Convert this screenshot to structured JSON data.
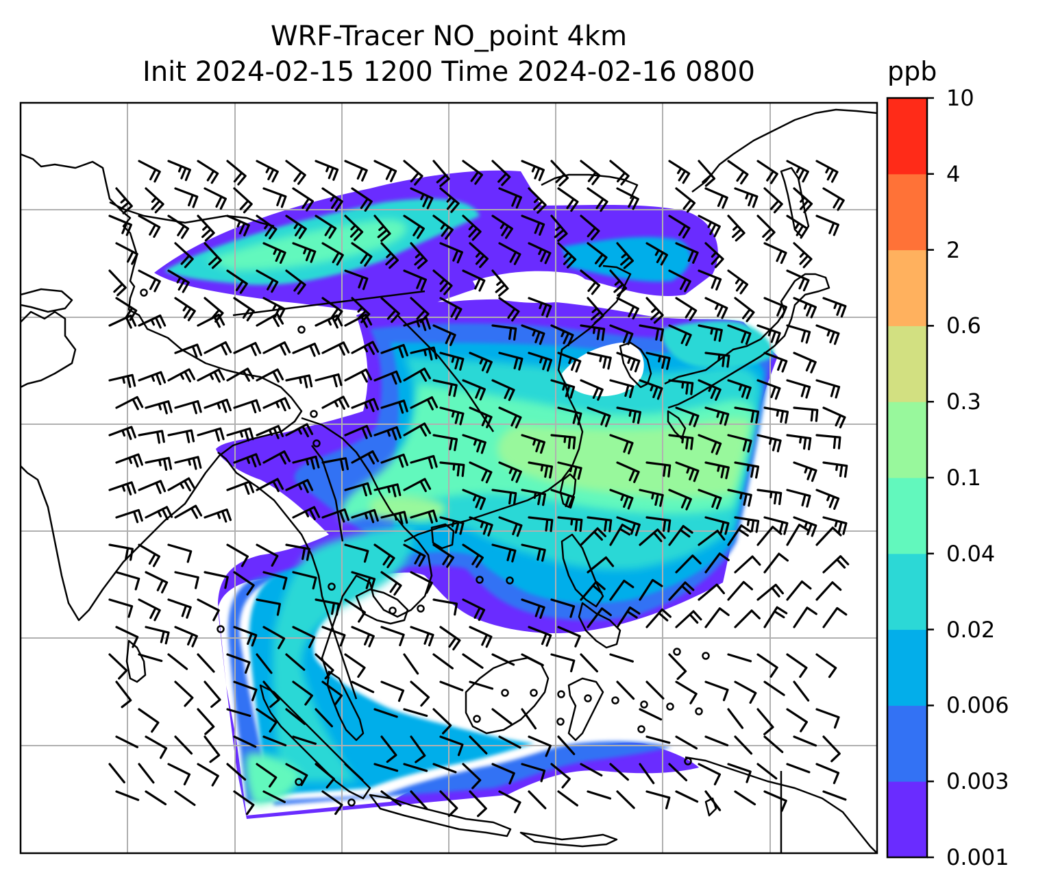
{
  "title": {
    "line1": "WRF-Tracer NO_point 4km",
    "line2": "Init 2024-02-15 1200 Time 2024-02-16 0800"
  },
  "colorbar": {
    "unit": "ppb",
    "levels": [
      "0.001",
      "0.003",
      "0.006",
      "0.02",
      "0.04",
      "0.1",
      "0.3",
      "0.6",
      "2",
      "4",
      "10"
    ],
    "colors": [
      "#6a2cff",
      "#3372f4",
      "#03aeea",
      "#2cd8d6",
      "#62f8bd",
      "#98f89c",
      "#d2e081",
      "#ffb15e",
      "#ff7237",
      "#ff2b18"
    ]
  },
  "map": {
    "variable": "NO_point tracer concentration",
    "overlay": "wind barbs",
    "gridlines": true,
    "coastline_color": "#000000",
    "gridline_color": "#b0b0b0"
  }
}
